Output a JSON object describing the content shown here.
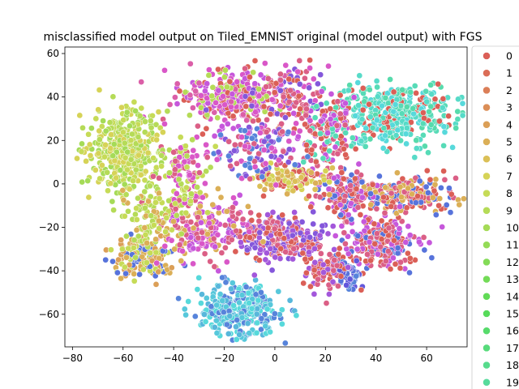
{
  "chart_data": {
    "type": "scatter",
    "title": "misclassified model output on Tiled_EMNIST original (model output) with FGS",
    "xlabel": "",
    "ylabel": "",
    "xlim": [
      -83,
      76
    ],
    "ylim": [
      -75,
      63
    ],
    "x_ticks": [
      -80,
      -60,
      -40,
      -20,
      0,
      20,
      40,
      60
    ],
    "y_ticks": [
      -60,
      -40,
      -20,
      0,
      20,
      40,
      60
    ],
    "grid": false,
    "legend_position": "right",
    "legend": [
      "0",
      "1",
      "2",
      "3",
      "4",
      "5",
      "6",
      "7",
      "8",
      "9",
      "10",
      "11",
      "12",
      "13",
      "14",
      "15",
      "16",
      "17",
      "18",
      "19"
    ],
    "legend_colors": [
      "#db5f57",
      "#db6d57",
      "#db7e57",
      "#db8e57",
      "#db9f57",
      "#dbaf57",
      "#dbc057",
      "#d6d357",
      "#c6db57",
      "#b5db57",
      "#a5db57",
      "#94db57",
      "#83db57",
      "#73db57",
      "#62db57",
      "#57db5a",
      "#57db6b",
      "#57db7b",
      "#57db8c",
      "#57db9c"
    ],
    "clusters": [
      {
        "x": -18,
        "y": 40,
        "sx": 10,
        "sy": 6,
        "n": 340,
        "colors": [
          "#d957c8",
          "#c657db",
          "#db5fa8",
          "#b5db57",
          "#db5f57"
        ]
      },
      {
        "x": 5,
        "y": 40,
        "sx": 8,
        "sy": 7,
        "n": 140,
        "colors": [
          "#db5f57",
          "#db5f86",
          "#d957c8",
          "#8457db"
        ]
      },
      {
        "x": 48,
        "y": 32,
        "sx": 11,
        "sy": 7,
        "n": 420,
        "colors": [
          "#57dbb7",
          "#57dbc8",
          "#57dbac",
          "#db5f57",
          "#57d9db"
        ]
      },
      {
        "x": -60,
        "y": 15,
        "sx": 7,
        "sy": 9,
        "n": 420,
        "colors": [
          "#c6db57",
          "#b5db57",
          "#d6d357",
          "#a5db57"
        ]
      },
      {
        "x": -51,
        "y": -33,
        "sx": 6,
        "sy": 5,
        "n": 180,
        "colors": [
          "#dbaf57",
          "#db9f57",
          "#c6db57",
          "#5773db"
        ]
      },
      {
        "x": -14,
        "y": -58,
        "sx": 8,
        "sy": 6,
        "n": 330,
        "colors": [
          "#57c8db",
          "#57b7db",
          "#5784db",
          "#57d9db"
        ]
      },
      {
        "x": 2,
        "y": -25,
        "sx": 9,
        "sy": 5,
        "n": 280,
        "colors": [
          "#a357db",
          "#8457db",
          "#db5f86",
          "#db5f57"
        ]
      },
      {
        "x": 43,
        "y": -27,
        "sx": 7,
        "sy": 6,
        "n": 230,
        "colors": [
          "#db5f86",
          "#db5f57",
          "#c657db",
          "#5773db"
        ]
      },
      {
        "x": 52,
        "y": -5,
        "sx": 10,
        "sy": 4,
        "n": 210,
        "colors": [
          "#db5f86",
          "#5773db",
          "#db5f57",
          "#dbaf57"
        ]
      },
      {
        "x": 28,
        "y": -5,
        "sx": 5,
        "sy": 6,
        "n": 150,
        "colors": [
          "#db5f86",
          "#5773db",
          "#db5f57",
          "#c657db"
        ]
      },
      {
        "x": 20,
        "y": 22,
        "sx": 6,
        "sy": 8,
        "n": 160,
        "colors": [
          "#db5f57",
          "#db5f86",
          "#c657db",
          "#57dbb7"
        ]
      },
      {
        "x": -28,
        "y": -20,
        "sx": 8,
        "sy": 8,
        "n": 200,
        "colors": [
          "#db5f86",
          "#d957c8",
          "#c657db",
          "#dbaf57"
        ]
      },
      {
        "x": 5,
        "y": 2,
        "sx": 7,
        "sy": 4,
        "n": 110,
        "colors": [
          "#dbc057",
          "#d6d357",
          "#dbaf57",
          "#db5f57"
        ]
      },
      {
        "x": 28,
        "y": -42,
        "sx": 3,
        "sy": 3,
        "n": 70,
        "colors": [
          "#5773db",
          "#6357db",
          "#5784db"
        ]
      },
      {
        "x": -8,
        "y": 15,
        "sx": 8,
        "sy": 6,
        "n": 130,
        "colors": [
          "#d957c8",
          "#db5f86",
          "#8457db",
          "#5784db"
        ]
      },
      {
        "x": -36,
        "y": 5,
        "sx": 5,
        "sy": 9,
        "n": 120,
        "colors": [
          "#c6db57",
          "#db5f86",
          "#d957c8",
          "#b5db57"
        ]
      },
      {
        "x": 20,
        "y": -38,
        "sx": 5,
        "sy": 5,
        "n": 90,
        "colors": [
          "#db5f86",
          "#a357db",
          "#db5f57"
        ]
      },
      {
        "x": -50,
        "y": -15,
        "sx": 6,
        "sy": 8,
        "n": 100,
        "colors": [
          "#c6db57",
          "#dbaf57",
          "#b5db57"
        ]
      }
    ]
  }
}
